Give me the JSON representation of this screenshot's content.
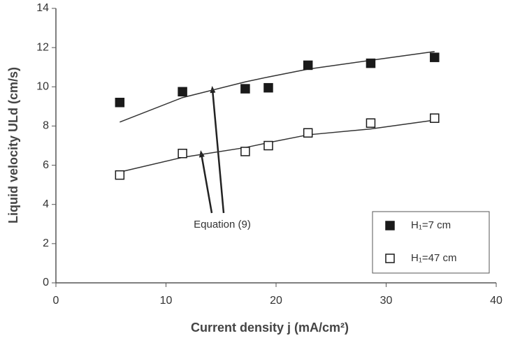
{
  "chart_data": {
    "type": "scatter",
    "xlabel": "Current density  j (mA/cm²)",
    "ylabel": "Liquid velocity ULd (cm/s)",
    "annotation": "Equation (9)",
    "xlim": [
      0,
      40
    ],
    "xticks": [
      0,
      10,
      20,
      30,
      40
    ],
    "ylim": [
      0,
      14
    ],
    "yticks": [
      0,
      2,
      4,
      6,
      8,
      10,
      12,
      14
    ],
    "legend": "lower right",
    "series": [
      {
        "name": "H₁=7 cm",
        "marker": "filled",
        "color": "#1a1a1a",
        "x": [
          5.8,
          11.5,
          17.2,
          19.3,
          22.9,
          28.6,
          34.4
        ],
        "values": [
          9.2,
          9.75,
          9.9,
          9.95,
          11.1,
          11.2,
          11.5
        ],
        "fit": [
          8.2,
          9.45,
          10.25,
          10.5,
          10.9,
          11.35,
          11.8
        ]
      },
      {
        "name": "H₁=47 cm",
        "marker": "hollow",
        "color": "#1a1a1a",
        "x": [
          5.8,
          11.5,
          17.2,
          19.3,
          22.9,
          28.6,
          34.4
        ],
        "values": [
          5.5,
          6.6,
          6.7,
          7.0,
          7.65,
          8.15,
          8.4
        ],
        "fit": [
          5.65,
          6.4,
          6.9,
          7.15,
          7.55,
          7.85,
          8.3
        ]
      }
    ]
  }
}
